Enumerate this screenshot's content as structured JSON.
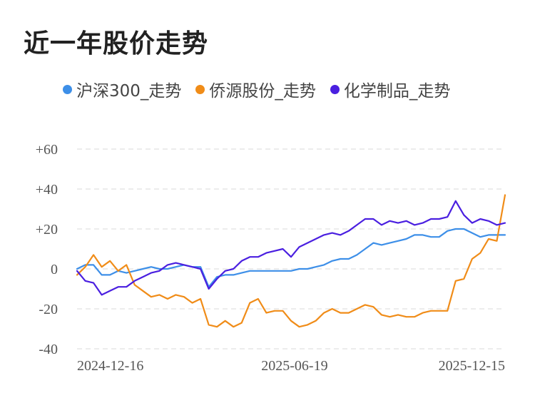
{
  "title": "近一年股价走势",
  "chart_data": {
    "type": "line",
    "title": "近一年股价走势",
    "xlabel": "",
    "ylabel": "",
    "x_range": [
      "2024-12-16",
      "2025-12-15"
    ],
    "x_tick_labels": [
      "2024-12-16",
      "2025-06-19",
      "2025-12-15"
    ],
    "y_ticks": [
      60,
      40,
      20,
      0,
      -20,
      -40
    ],
    "y_tick_labels": [
      "+60",
      "+40",
      "+20",
      "0",
      "-20",
      "-40"
    ],
    "ylim": [
      -40,
      60
    ],
    "grid": true,
    "legend_position": "top-left",
    "series": [
      {
        "name": "沪深300_走势",
        "color": "#3d8fe8",
        "points": [
          [
            "2024-12-16",
            0
          ],
          [
            "2024-12-23",
            2
          ],
          [
            "2024-12-30",
            2
          ],
          [
            "2025-01-06",
            -3
          ],
          [
            "2025-01-13",
            -3
          ],
          [
            "2025-01-20",
            -1
          ],
          [
            "2025-01-27",
            -2
          ],
          [
            "2025-02-03",
            -1
          ],
          [
            "2025-02-10",
            0
          ],
          [
            "2025-02-17",
            1
          ],
          [
            "2025-02-24",
            0
          ],
          [
            "2025-03-03",
            0
          ],
          [
            "2025-03-10",
            1
          ],
          [
            "2025-03-17",
            2
          ],
          [
            "2025-03-24",
            1
          ],
          [
            "2025-03-31",
            1
          ],
          [
            "2025-04-07",
            -9
          ],
          [
            "2025-04-14",
            -4
          ],
          [
            "2025-04-21",
            -3
          ],
          [
            "2025-04-28",
            -3
          ],
          [
            "2025-05-05",
            -2
          ],
          [
            "2025-05-12",
            -1
          ],
          [
            "2025-05-19",
            -1
          ],
          [
            "2025-05-26",
            -1
          ],
          [
            "2025-06-02",
            -1
          ],
          [
            "2025-06-09",
            -1
          ],
          [
            "2025-06-16",
            -1
          ],
          [
            "2025-06-23",
            0
          ],
          [
            "2025-06-30",
            0
          ],
          [
            "2025-07-07",
            1
          ],
          [
            "2025-07-14",
            2
          ],
          [
            "2025-07-21",
            4
          ],
          [
            "2025-07-28",
            5
          ],
          [
            "2025-08-04",
            5
          ],
          [
            "2025-08-11",
            7
          ],
          [
            "2025-08-18",
            10
          ],
          [
            "2025-08-25",
            13
          ],
          [
            "2025-09-01",
            12
          ],
          [
            "2025-09-08",
            13
          ],
          [
            "2025-09-15",
            14
          ],
          [
            "2025-09-22",
            15
          ],
          [
            "2025-09-29",
            17
          ],
          [
            "2025-10-06",
            17
          ],
          [
            "2025-10-13",
            16
          ],
          [
            "2025-10-20",
            16
          ],
          [
            "2025-10-27",
            19
          ],
          [
            "2025-11-03",
            20
          ],
          [
            "2025-11-10",
            20
          ],
          [
            "2025-11-17",
            18
          ],
          [
            "2025-11-24",
            16
          ],
          [
            "2025-12-01",
            17
          ],
          [
            "2025-12-08",
            17
          ],
          [
            "2025-12-15",
            17
          ]
        ]
      },
      {
        "name": "侨源股份_走势",
        "color": "#f08c18",
        "points": [
          [
            "2024-12-16",
            -3
          ],
          [
            "2024-12-23",
            1
          ],
          [
            "2024-12-30",
            7
          ],
          [
            "2025-01-06",
            1
          ],
          [
            "2025-01-13",
            4
          ],
          [
            "2025-01-20",
            -1
          ],
          [
            "2025-01-27",
            2
          ],
          [
            "2025-02-03",
            -8
          ],
          [
            "2025-02-10",
            -11
          ],
          [
            "2025-02-17",
            -14
          ],
          [
            "2025-02-24",
            -13
          ],
          [
            "2025-03-03",
            -15
          ],
          [
            "2025-03-10",
            -13
          ],
          [
            "2025-03-17",
            -14
          ],
          [
            "2025-03-24",
            -17
          ],
          [
            "2025-03-31",
            -15
          ],
          [
            "2025-04-07",
            -28
          ],
          [
            "2025-04-14",
            -29
          ],
          [
            "2025-04-21",
            -26
          ],
          [
            "2025-04-28",
            -29
          ],
          [
            "2025-05-05",
            -27
          ],
          [
            "2025-05-12",
            -17
          ],
          [
            "2025-05-19",
            -15
          ],
          [
            "2025-05-26",
            -22
          ],
          [
            "2025-06-02",
            -21
          ],
          [
            "2025-06-09",
            -21
          ],
          [
            "2025-06-16",
            -26
          ],
          [
            "2025-06-23",
            -29
          ],
          [
            "2025-06-30",
            -28
          ],
          [
            "2025-07-07",
            -26
          ],
          [
            "2025-07-14",
            -22
          ],
          [
            "2025-07-21",
            -20
          ],
          [
            "2025-07-28",
            -22
          ],
          [
            "2025-08-04",
            -22
          ],
          [
            "2025-08-11",
            -20
          ],
          [
            "2025-08-18",
            -18
          ],
          [
            "2025-08-25",
            -19
          ],
          [
            "2025-09-01",
            -23
          ],
          [
            "2025-09-08",
            -24
          ],
          [
            "2025-09-15",
            -23
          ],
          [
            "2025-09-22",
            -24
          ],
          [
            "2025-09-29",
            -24
          ],
          [
            "2025-10-06",
            -22
          ],
          [
            "2025-10-13",
            -21
          ],
          [
            "2025-10-20",
            -21
          ],
          [
            "2025-10-27",
            -21
          ],
          [
            "2025-11-03",
            -6
          ],
          [
            "2025-11-10",
            -5
          ],
          [
            "2025-11-17",
            5
          ],
          [
            "2025-11-24",
            8
          ],
          [
            "2025-12-01",
            15
          ],
          [
            "2025-12-08",
            14
          ],
          [
            "2025-12-15",
            37
          ]
        ]
      },
      {
        "name": "化学制品_走势",
        "color": "#4a1fe0",
        "points": [
          [
            "2024-12-16",
            -1
          ],
          [
            "2024-12-23",
            -6
          ],
          [
            "2024-12-30",
            -7
          ],
          [
            "2025-01-06",
            -13
          ],
          [
            "2025-01-13",
            -11
          ],
          [
            "2025-01-20",
            -9
          ],
          [
            "2025-01-27",
            -9
          ],
          [
            "2025-02-03",
            -6
          ],
          [
            "2025-02-10",
            -4
          ],
          [
            "2025-02-17",
            -2
          ],
          [
            "2025-02-24",
            -1
          ],
          [
            "2025-03-03",
            2
          ],
          [
            "2025-03-10",
            3
          ],
          [
            "2025-03-17",
            2
          ],
          [
            "2025-03-24",
            1
          ],
          [
            "2025-03-31",
            0
          ],
          [
            "2025-04-07",
            -10
          ],
          [
            "2025-04-14",
            -5
          ],
          [
            "2025-04-21",
            -1
          ],
          [
            "2025-04-28",
            0
          ],
          [
            "2025-05-05",
            4
          ],
          [
            "2025-05-12",
            6
          ],
          [
            "2025-05-19",
            6
          ],
          [
            "2025-05-26",
            8
          ],
          [
            "2025-06-02",
            9
          ],
          [
            "2025-06-09",
            10
          ],
          [
            "2025-06-16",
            6
          ],
          [
            "2025-06-23",
            11
          ],
          [
            "2025-06-30",
            13
          ],
          [
            "2025-07-07",
            15
          ],
          [
            "2025-07-14",
            17
          ],
          [
            "2025-07-21",
            18
          ],
          [
            "2025-07-28",
            17
          ],
          [
            "2025-08-04",
            19
          ],
          [
            "2025-08-11",
            22
          ],
          [
            "2025-08-18",
            25
          ],
          [
            "2025-08-25",
            25
          ],
          [
            "2025-09-01",
            22
          ],
          [
            "2025-09-08",
            24
          ],
          [
            "2025-09-15",
            23
          ],
          [
            "2025-09-22",
            24
          ],
          [
            "2025-09-29",
            22
          ],
          [
            "2025-10-06",
            23
          ],
          [
            "2025-10-13",
            25
          ],
          [
            "2025-10-20",
            25
          ],
          [
            "2025-10-27",
            26
          ],
          [
            "2025-11-03",
            34
          ],
          [
            "2025-11-10",
            27
          ],
          [
            "2025-11-17",
            23
          ],
          [
            "2025-11-24",
            25
          ],
          [
            "2025-12-01",
            24
          ],
          [
            "2025-12-08",
            22
          ],
          [
            "2025-12-15",
            23
          ]
        ]
      }
    ]
  }
}
